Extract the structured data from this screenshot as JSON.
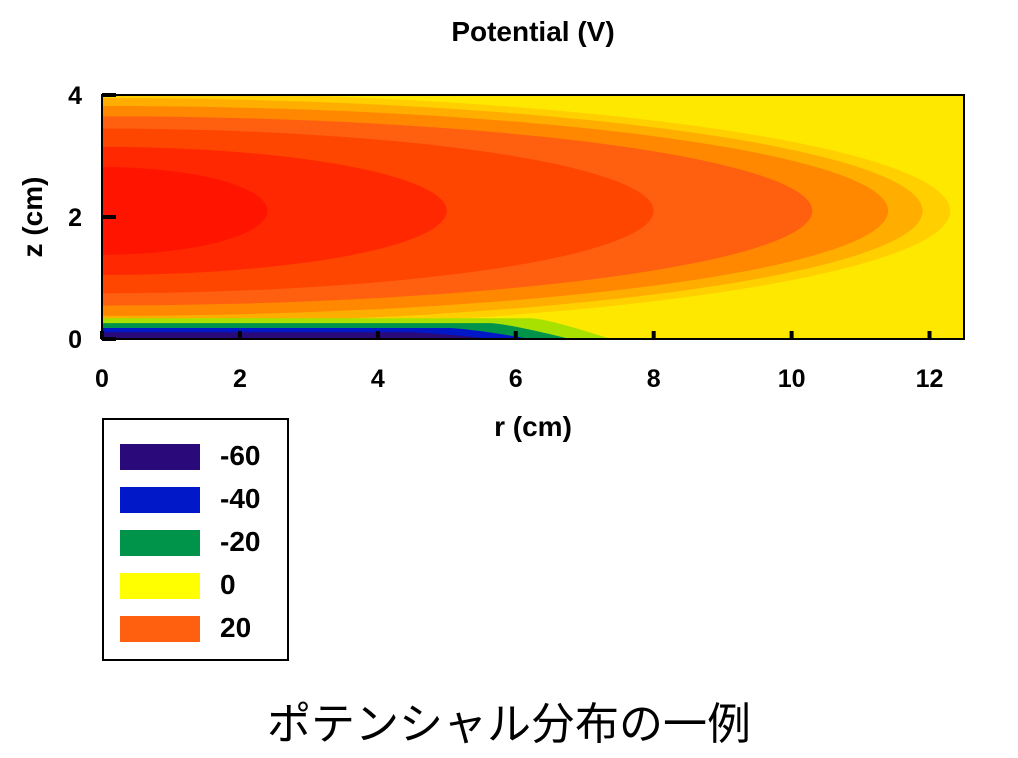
{
  "chart_data": {
    "type": "heatmap",
    "title": "Potential (V)",
    "xlabel": "r (cm)",
    "ylabel": "z (cm)",
    "xlim": [
      0,
      12.5
    ],
    "ylim": [
      0,
      4
    ],
    "xticks": [
      0,
      2,
      4,
      6,
      8,
      10,
      12
    ],
    "yticks": [
      0,
      2,
      4
    ],
    "legend": [
      {
        "label": "-60",
        "color": "#2a0a7a"
      },
      {
        "label": "-40",
        "color": "#0018c8"
      },
      {
        "label": "-20",
        "color": "#00944a"
      },
      {
        "label": "0",
        "color": "#ffff00"
      },
      {
        "label": "20",
        "color": "#ff6010"
      }
    ],
    "legend_position": "below-left",
    "contour_levels": [
      {
        "value": 0,
        "color": "#ffe800"
      },
      {
        "value": 5,
        "color": "#ffcf00"
      },
      {
        "value": 10,
        "color": "#ffae00"
      },
      {
        "value": 15,
        "color": "#ff8800"
      },
      {
        "value": 20,
        "color": "#ff6010"
      },
      {
        "value": 25,
        "color": "#ff4600"
      },
      {
        "value": 30,
        "color": "#ff2800"
      },
      {
        "value": 35,
        "color": "#ff1400"
      }
    ],
    "negative_levels": [
      {
        "value": -5,
        "color": "#a8e000"
      },
      {
        "value": -20,
        "color": "#00944a"
      },
      {
        "value": -40,
        "color": "#0018c8"
      },
      {
        "value": -60,
        "color": "#2a0a7a"
      }
    ]
  },
  "caption": "ポテンシャル分布の一例"
}
